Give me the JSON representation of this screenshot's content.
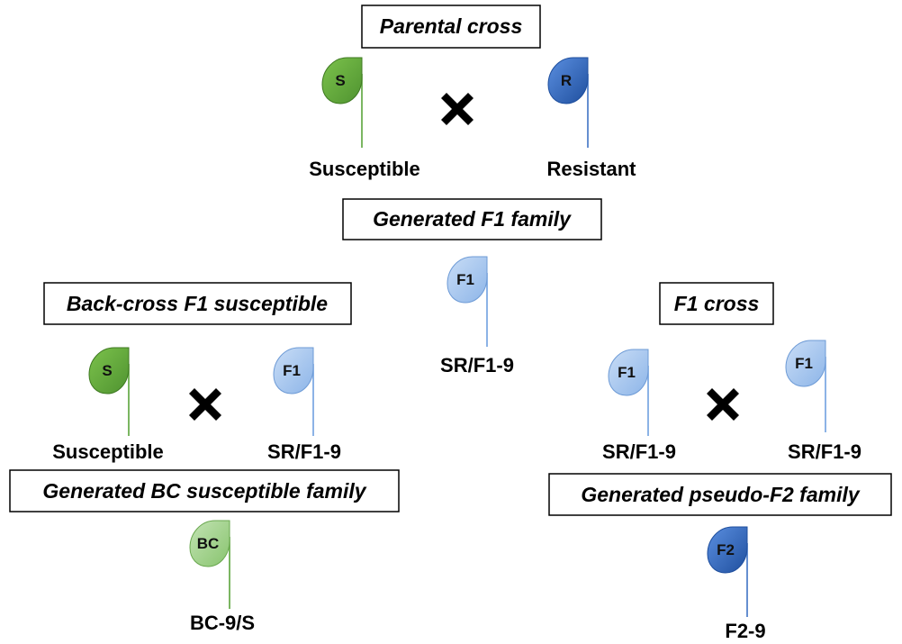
{
  "boxes": {
    "parental": "Parental cross",
    "f1_family": "Generated F1 family",
    "backcross": "Back-cross F1 susceptible",
    "f1_cross": "F1 cross",
    "bc_family": "Generated BC susceptible family",
    "pseudo_f2": "Generated pseudo-F2 family"
  },
  "plants": {
    "parent_s": {
      "letter": "S",
      "caption": "Susceptible",
      "color": "#6aaa42"
    },
    "parent_r": {
      "letter": "R",
      "caption": "Resistant",
      "color": "#3f73c4"
    },
    "f1_center": {
      "letter": "F1",
      "caption": "SR/F1-9",
      "color": "#9ec3ec"
    },
    "bc_s": {
      "letter": "S",
      "caption": "Susceptible",
      "color": "#6aaa42"
    },
    "bc_f1": {
      "letter": "F1",
      "caption": "SR/F1-9",
      "color": "#9ec3ec"
    },
    "cross_f1_left": {
      "letter": "F1",
      "caption": "SR/F1-9",
      "color": "#9ec3ec"
    },
    "cross_f1_right": {
      "letter": "F1",
      "caption": "SR/F1-9",
      "color": "#9ec3ec"
    },
    "bc_result": {
      "letter": "BC",
      "caption": "BC-9/S",
      "color": "#9fd08a"
    },
    "f2_result": {
      "letter": "F2",
      "caption": "F2-9",
      "color": "#3f73c4"
    }
  },
  "icons": {
    "cross_mark": "cross-x-icon"
  }
}
